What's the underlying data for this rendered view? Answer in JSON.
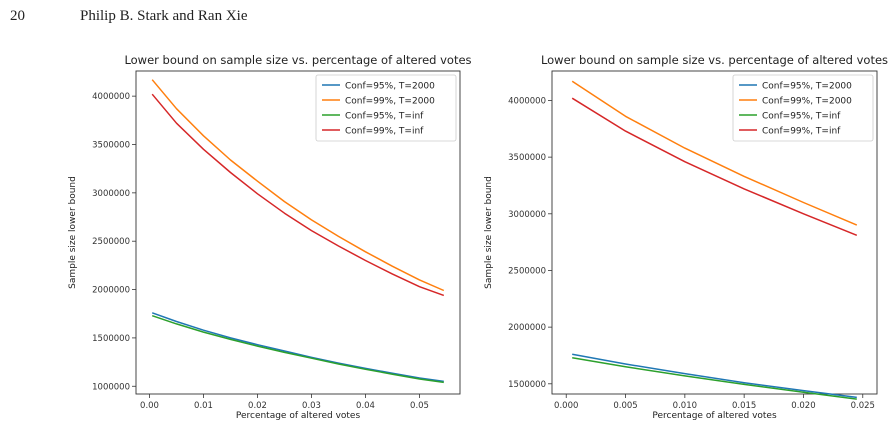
{
  "header": {
    "page_number": "20",
    "authors": "Philip B. Stark and Ran Xie"
  },
  "colors": {
    "conf95_T2000": "#1f77b4",
    "conf99_T2000": "#ff7f0e",
    "conf95_Tinf": "#2ca02c",
    "conf99_Tinf": "#d62728"
  },
  "chart_data": [
    {
      "type": "line",
      "title": "Lower bound on sample size vs. percentage of altered votes",
      "xlabel": "Percentage of altered votes",
      "ylabel": "Sample size lower bound",
      "xlim": [
        -0.0025,
        0.0575
      ],
      "ylim": [
        920000,
        4260000
      ],
      "xticks": [
        0.0,
        0.01,
        0.02,
        0.03,
        0.04,
        0.05
      ],
      "xtick_labels": [
        "0.00",
        "0.01",
        "0.02",
        "0.03",
        "0.04",
        "0.05"
      ],
      "yticks": [
        1000000,
        1500000,
        2000000,
        2500000,
        3000000,
        3500000,
        4000000
      ],
      "ytick_labels": [
        "1000000",
        "1500000",
        "2000000",
        "2500000",
        "3000000",
        "3500000",
        "4000000"
      ],
      "grid": false,
      "legend_position": "top-right",
      "x": [
        0.0005,
        0.005,
        0.01,
        0.015,
        0.02,
        0.025,
        0.03,
        0.035,
        0.04,
        0.045,
        0.05,
        0.0545
      ],
      "series": [
        {
          "name": "Conf=95%, T=2000",
          "color_key": "conf95_T2000",
          "values": [
            1760000,
            1670000,
            1580000,
            1500000,
            1430000,
            1365000,
            1300000,
            1240000,
            1185000,
            1135000,
            1085000,
            1050000
          ]
        },
        {
          "name": "Conf=99%, T=2000",
          "color_key": "conf99_T2000",
          "values": [
            4170000,
            3870000,
            3590000,
            3340000,
            3120000,
            2910000,
            2720000,
            2550000,
            2390000,
            2240000,
            2100000,
            1990000
          ]
        },
        {
          "name": "Conf=95%, T=inf",
          "color_key": "conf95_Tinf",
          "values": [
            1730000,
            1645000,
            1560000,
            1485000,
            1415000,
            1350000,
            1290000,
            1230000,
            1175000,
            1125000,
            1075000,
            1040000
          ]
        },
        {
          "name": "Conf=99%, T=inf",
          "color_key": "conf99_Tinf",
          "values": [
            4020000,
            3720000,
            3450000,
            3210000,
            2990000,
            2790000,
            2610000,
            2450000,
            2300000,
            2160000,
            2030000,
            1940000
          ]
        }
      ]
    },
    {
      "type": "line",
      "title": "Lower bound on sample size vs. percentage of altered votes",
      "xlabel": "Percentage of altered votes",
      "ylabel": "Sample size lower bound",
      "xlim": [
        -0.0012,
        0.0262
      ],
      "ylim": [
        1410000,
        4260000
      ],
      "xticks": [
        0.0,
        0.005,
        0.01,
        0.015,
        0.02,
        0.025
      ],
      "xtick_labels": [
        "0.000",
        "0.005",
        "0.010",
        "0.015",
        "0.020",
        "0.025"
      ],
      "yticks": [
        1500000,
        2000000,
        2500000,
        3000000,
        3500000,
        4000000
      ],
      "ytick_labels": [
        "1500000",
        "2000000",
        "2500000",
        "3000000",
        "3500000",
        "4000000"
      ],
      "grid": false,
      "legend_position": "top-right",
      "x": [
        0.0005,
        0.005,
        0.01,
        0.015,
        0.02,
        0.0245
      ],
      "series": [
        {
          "name": "Conf=95%, T=2000",
          "color_key": "conf95_T2000",
          "values": [
            1760000,
            1675000,
            1590000,
            1510000,
            1440000,
            1380000
          ]
        },
        {
          "name": "Conf=99%, T=2000",
          "color_key": "conf99_T2000",
          "values": [
            4170000,
            3860000,
            3580000,
            3330000,
            3100000,
            2900000
          ]
        },
        {
          "name": "Conf=95%, T=inf",
          "color_key": "conf95_Tinf",
          "values": [
            1730000,
            1650000,
            1570000,
            1495000,
            1425000,
            1365000
          ]
        },
        {
          "name": "Conf=99%, T=inf",
          "color_key": "conf99_Tinf",
          "values": [
            4020000,
            3730000,
            3460000,
            3220000,
            3000000,
            2810000
          ]
        }
      ]
    }
  ]
}
